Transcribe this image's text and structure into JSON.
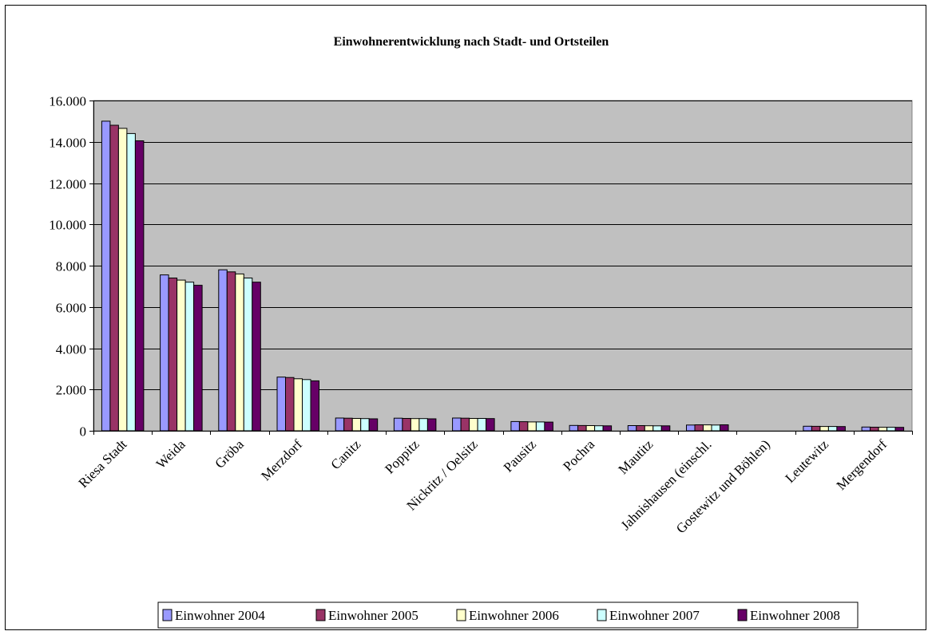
{
  "chart_data": {
    "type": "bar",
    "title": "Einwohnerentwicklung nach Stadt- und Ortsteilen",
    "xlabel": "",
    "ylabel": "",
    "ylim": [
      0,
      16000
    ],
    "y_ticks": [
      0,
      2000,
      4000,
      6000,
      8000,
      10000,
      12000,
      14000,
      16000
    ],
    "y_tick_labels": [
      "0",
      "2.000",
      "4.000",
      "6.000",
      "8.000",
      "10.000",
      "12.000",
      "14.000",
      "16.000"
    ],
    "grid": true,
    "legend_position": "bottom",
    "plot_background": "#c0c0c0",
    "categories": [
      "Riesa Stadt",
      "Weida",
      "Gröba",
      "Merzdorf",
      "Canitz",
      "Poppitz",
      "Nickritz / Oelsitz",
      "Pausitz",
      "Pochra",
      "Mautitz",
      "Jahnishausen (einschl.",
      "Gostewitz und Böhlen)",
      "Leutewitz",
      "Mergendorf"
    ],
    "series": [
      {
        "name": "Einwohner 2004",
        "color": "#9999ff",
        "values": [
          15000,
          7550,
          7800,
          2600,
          620,
          610,
          620,
          450,
          260,
          250,
          280,
          0,
          220,
          180
        ]
      },
      {
        "name": "Einwohner 2005",
        "color": "#993366",
        "values": [
          14800,
          7400,
          7700,
          2580,
          610,
          600,
          610,
          440,
          255,
          250,
          290,
          0,
          215,
          175
        ]
      },
      {
        "name": "Einwohner 2006",
        "color": "#ffffcc",
        "values": [
          14650,
          7300,
          7600,
          2520,
          600,
          590,
          600,
          430,
          250,
          245,
          285,
          0,
          210,
          170
        ]
      },
      {
        "name": "Einwohner 2007",
        "color": "#ccffff",
        "values": [
          14400,
          7200,
          7400,
          2480,
          590,
          590,
          600,
          430,
          245,
          240,
          280,
          0,
          210,
          170
        ]
      },
      {
        "name": "Einwohner 2008",
        "color": "#660066",
        "values": [
          14050,
          7050,
          7200,
          2420,
          580,
          580,
          590,
          420,
          240,
          240,
          290,
          0,
          205,
          165
        ]
      }
    ]
  }
}
